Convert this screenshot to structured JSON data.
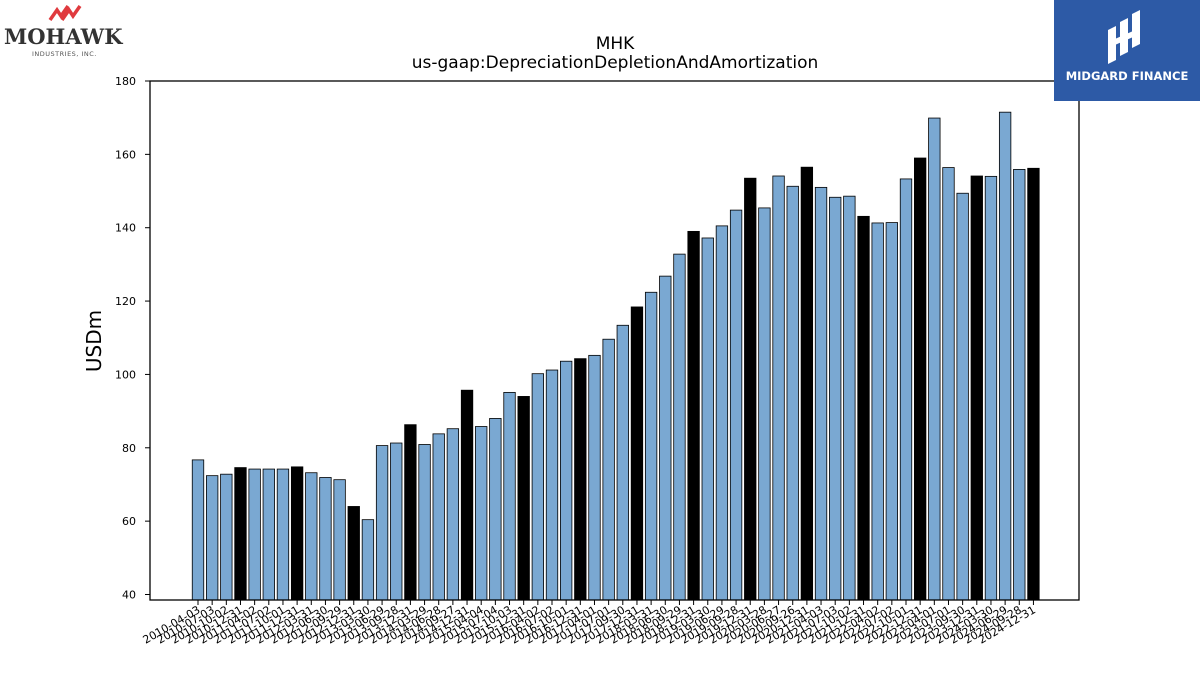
{
  "logos": {
    "left": {
      "name": "MOHAWK",
      "sub": "INDUSTRIES, INC."
    },
    "right": {
      "name": "MIDGARD FINANCE"
    }
  },
  "chart_data": {
    "type": "bar",
    "title": "MHK",
    "subtitle": "us-gaap:DepreciationDepletionAndAmortization",
    "xlabel": "",
    "ylabel": "USDm",
    "ylim": [
      38.5,
      180
    ],
    "yticks": [
      40,
      60,
      80,
      100,
      120,
      140,
      160,
      180
    ],
    "grid": false,
    "legend": "none",
    "colors": {
      "quarter": "#7aa8d2",
      "year_end": "#000000"
    },
    "categories": [
      "2010-04-03",
      "2010-07-03",
      "2010-10-02",
      "2010-12-31",
      "2011-04-02",
      "2011-07-02",
      "2011-10-01",
      "2011-12-31",
      "2012-03-31",
      "2012-06-30",
      "2012-09-29",
      "2012-12-31",
      "2013-03-30",
      "2013-06-29",
      "2013-09-28",
      "2013-12-31",
      "2014-03-29",
      "2014-06-28",
      "2014-09-27",
      "2014-12-31",
      "2015-04-04",
      "2015-07-04",
      "2015-10-03",
      "2015-12-31",
      "2016-04-02",
      "2016-07-02",
      "2016-10-01",
      "2016-12-31",
      "2017-04-01",
      "2017-07-01",
      "2017-09-30",
      "2017-12-31",
      "2018-03-31",
      "2018-06-30",
      "2018-09-29",
      "2018-12-31",
      "2019-03-30",
      "2019-06-29",
      "2019-09-28",
      "2019-12-31",
      "2020-03-28",
      "2020-06-27",
      "2020-09-26",
      "2020-12-31",
      "2021-04-03",
      "2021-07-03",
      "2021-10-02",
      "2021-12-31",
      "2022-04-02",
      "2022-07-02",
      "2022-10-01",
      "2022-12-31",
      "2023-04-01",
      "2023-07-01",
      "2023-09-30",
      "2023-12-31",
      "2024-03-30",
      "2024-06-29",
      "2024-09-28",
      "2024-12-31"
    ],
    "values": [
      76.7,
      72.4,
      72.8,
      74.6,
      74.2,
      74.2,
      74.2,
      74.8,
      73.2,
      71.9,
      71.3,
      64.0,
      60.4,
      80.6,
      81.3,
      86.3,
      80.9,
      83.8,
      85.2,
      95.7,
      85.8,
      88.0,
      95.1,
      94.0,
      100.2,
      101.2,
      103.6,
      104.3,
      105.2,
      109.6,
      113.4,
      118.4,
      122.4,
      126.8,
      132.8,
      139.0,
      137.2,
      140.5,
      144.8,
      153.5,
      145.4,
      154.1,
      151.3,
      156.5,
      151.0,
      148.3,
      148.6,
      143.1,
      141.3,
      141.4,
      153.3,
      159.0,
      169.9,
      156.4,
      149.4,
      154.1,
      154.0,
      171.5,
      155.9,
      156.2
    ],
    "year_end": [
      false,
      false,
      false,
      true,
      false,
      false,
      false,
      true,
      false,
      false,
      false,
      true,
      false,
      false,
      false,
      true,
      false,
      false,
      false,
      true,
      false,
      false,
      false,
      true,
      false,
      false,
      false,
      true,
      false,
      false,
      false,
      true,
      false,
      false,
      false,
      true,
      false,
      false,
      false,
      true,
      false,
      false,
      false,
      true,
      false,
      false,
      false,
      true,
      false,
      false,
      false,
      true,
      false,
      false,
      false,
      true,
      false,
      false,
      false,
      true
    ]
  }
}
